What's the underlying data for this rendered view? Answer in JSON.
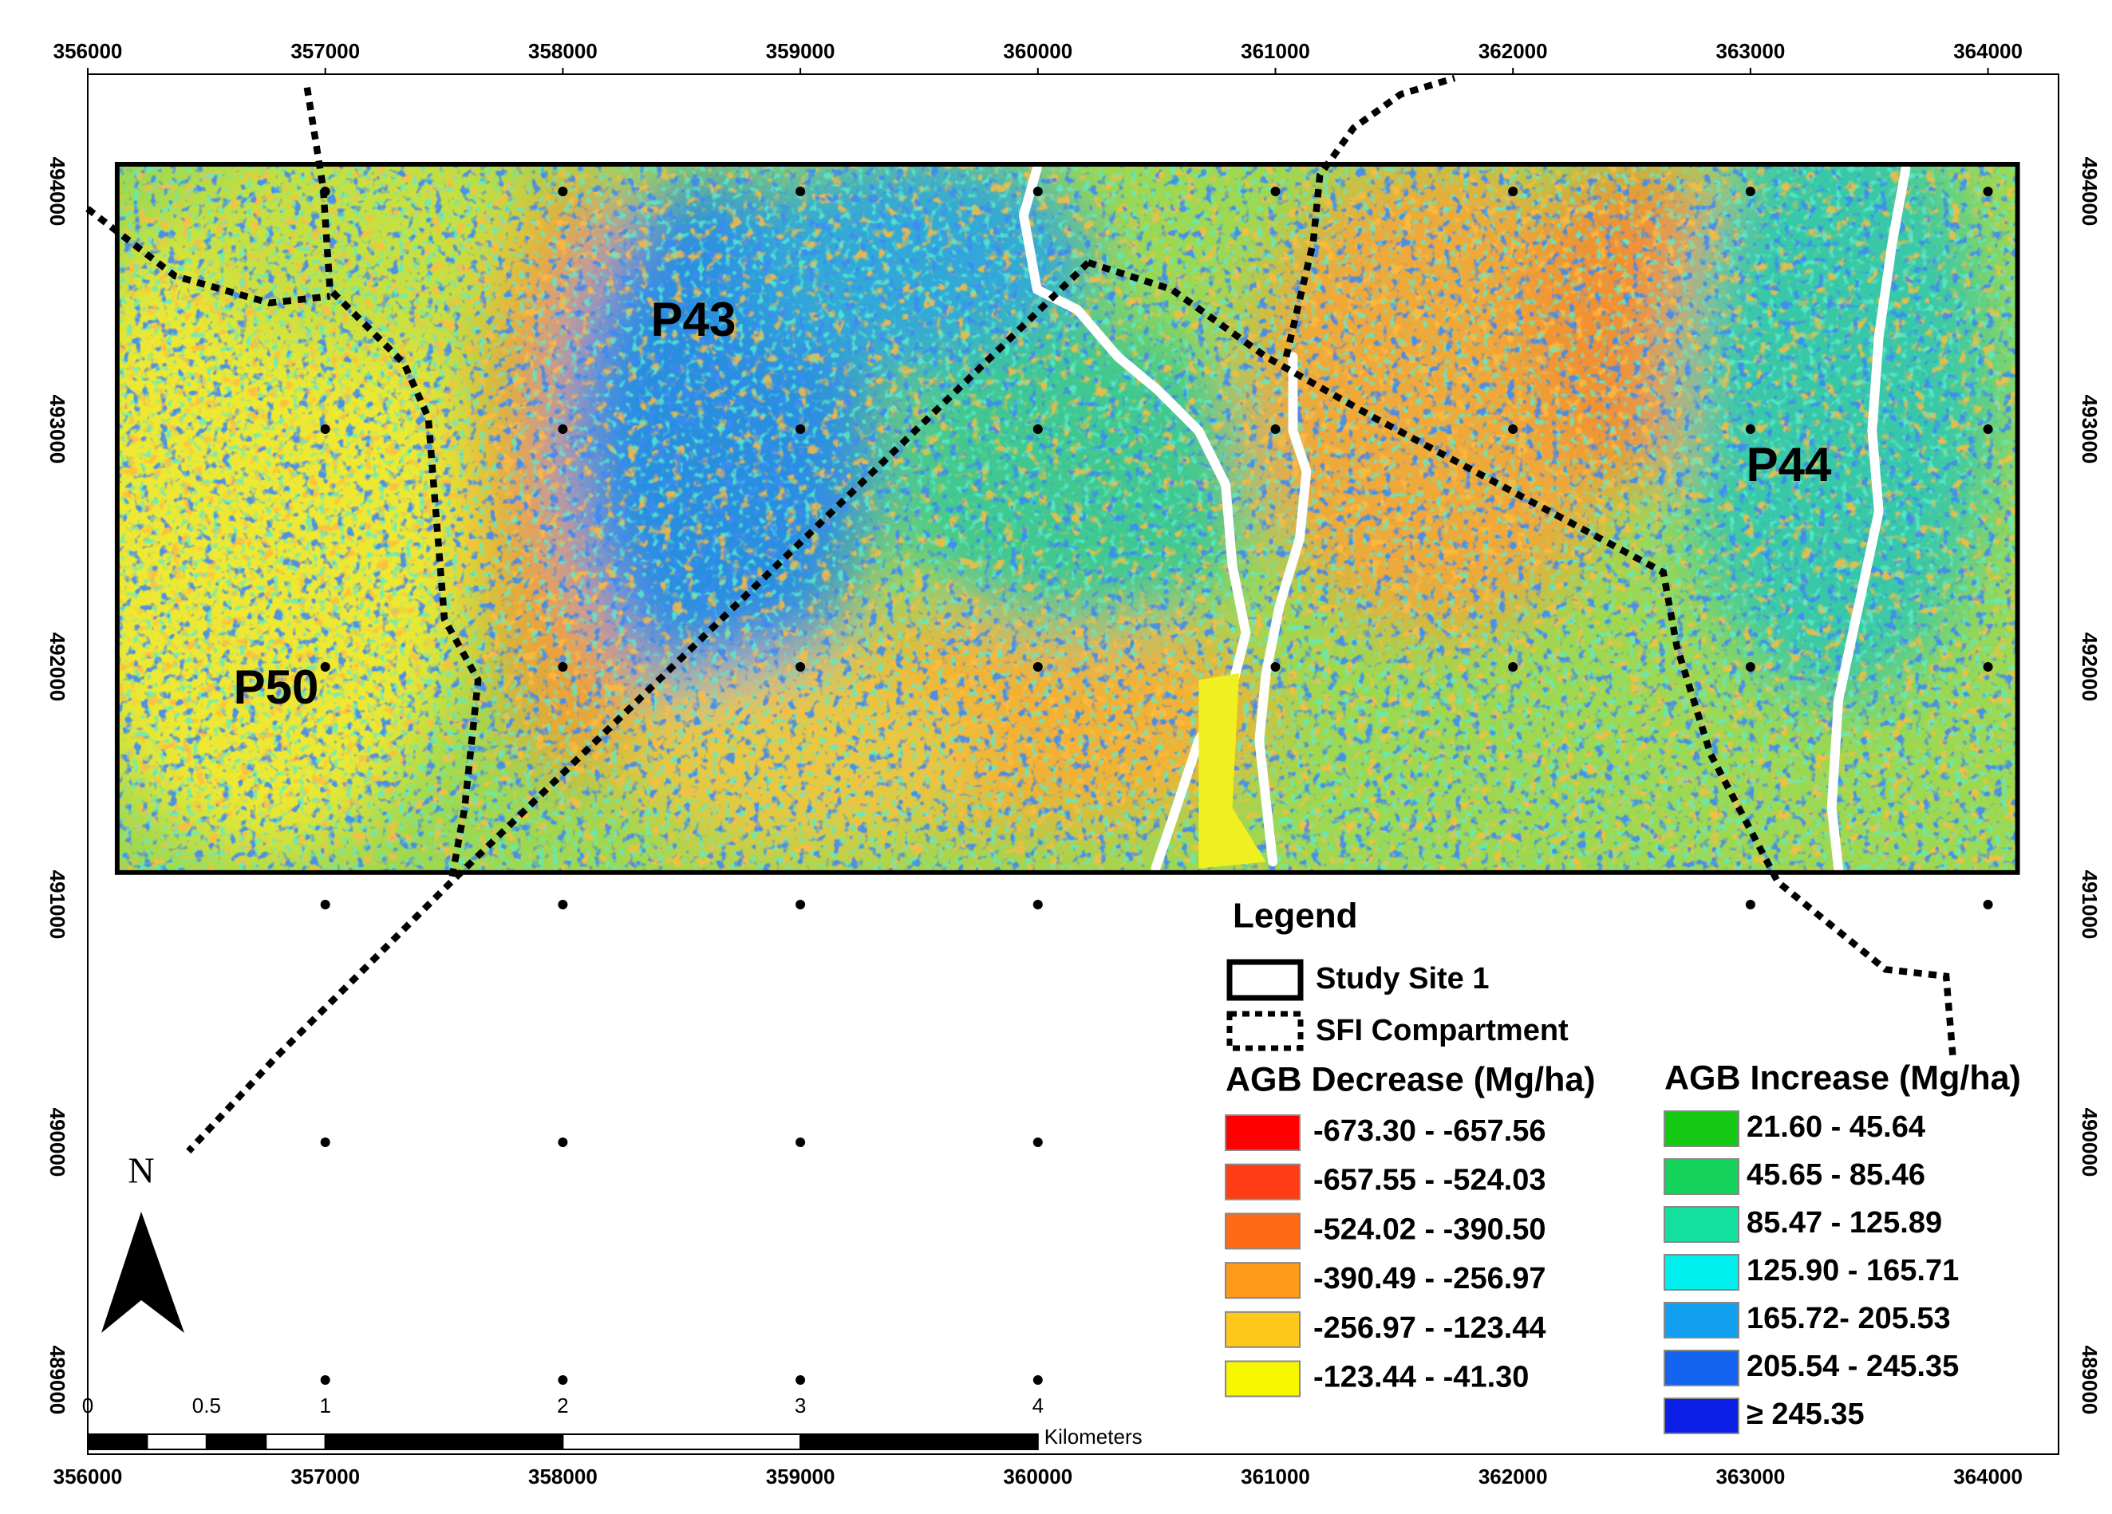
{
  "map": {
    "eastings": [
      356000,
      357000,
      358000,
      359000,
      360000,
      361000,
      362000,
      363000,
      364000
    ],
    "northings": [
      489000,
      490000,
      491000,
      492000,
      493000,
      494000
    ],
    "area_labels": [
      "P43",
      "P50",
      "P44"
    ],
    "north": "N",
    "scale_bar": {
      "ticks": [
        0,
        0.5,
        1,
        2,
        3,
        4
      ],
      "unit": "Kilometers"
    },
    "legend": {
      "title": "Legend",
      "study_site": "Study Site 1",
      "compartment": "SFI Compartment",
      "decrease": {
        "title": "AGB Decrease (Mg/ha)",
        "classes": [
          {
            "label": "-673.30 - -657.56",
            "color": "#ff0000"
          },
          {
            "label": "-657.55 - -524.03",
            "color": "#ff3c14"
          },
          {
            "label": "-524.02 - -390.50",
            "color": "#ff6a14"
          },
          {
            "label": "-390.49 - -256.97",
            "color": "#ff9a1a"
          },
          {
            "label": "-256.97 - -123.44",
            "color": "#ffc81a"
          },
          {
            "label": "-123.44 - -41.30",
            "color": "#f7f700"
          }
        ]
      },
      "increase": {
        "title": "AGB Increase (Mg/ha)",
        "classes": [
          {
            "label": "21.60 - 45.64",
            "color": "#14c814"
          },
          {
            "label": "45.65 - 85.46",
            "color": "#14d25a"
          },
          {
            "label": "85.47 - 125.89",
            "color": "#14e0a0"
          },
          {
            "label": "125.90 - 165.71",
            "color": "#00f0f0"
          },
          {
            "label": "165.72- 205.53",
            "color": "#14a0f0"
          },
          {
            "label": "205.54 - 245.35",
            "color": "#1464f0"
          },
          {
            "label": "≥ 245.35",
            "color": "#0a1ee6"
          }
        ]
      }
    }
  }
}
